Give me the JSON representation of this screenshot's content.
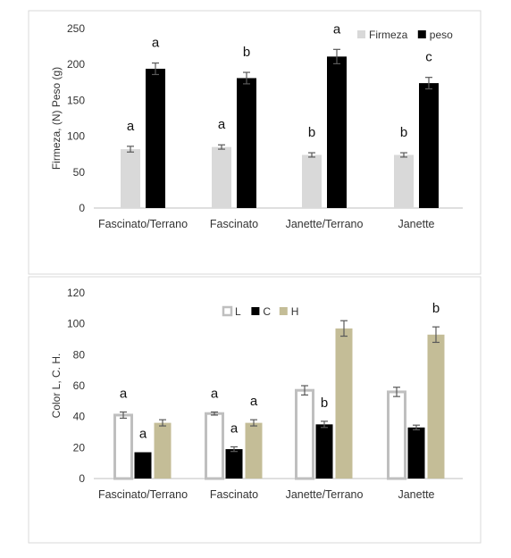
{
  "chart_data": [
    {
      "type": "bar",
      "ylabel": "Firmeza, (N) Peso (g)",
      "ylim": [
        0,
        250
      ],
      "yticks": [
        0,
        50,
        100,
        150,
        200,
        250
      ],
      "categories": [
        "Fascinato/Terrano",
        "Fascinato",
        "Janette/Terrano",
        "Janette"
      ],
      "legend_position": "top-right",
      "grid": false,
      "series": [
        {
          "name": "Firmeza",
          "color": "#d9d9d9",
          "values": [
            82,
            85,
            74,
            74
          ],
          "errors": [
            4,
            3,
            3,
            3
          ],
          "labels": [
            "a",
            "a",
            "b",
            "b"
          ]
        },
        {
          "name": "peso",
          "color": "#000000",
          "values": [
            194,
            181,
            211,
            174
          ],
          "errors": [
            8,
            8,
            10,
            8
          ],
          "labels": [
            "a",
            "b",
            "a",
            "c"
          ]
        }
      ]
    },
    {
      "type": "bar",
      "ylabel": "Color L, C. H.",
      "ylim": [
        0,
        120
      ],
      "yticks": [
        0,
        20,
        40,
        60,
        80,
        100,
        120
      ],
      "categories": [
        "Fascinato/Terrano",
        "Fascinato",
        "Janette/Terrano",
        "Janette"
      ],
      "legend_position": "top-center",
      "grid": false,
      "series": [
        {
          "name": "L",
          "color": "#ffffff",
          "values": [
            41,
            42,
            57,
            56
          ],
          "errors": [
            2,
            1,
            3,
            3
          ],
          "labels": [
            "a",
            "a",
            "",
            ""
          ]
        },
        {
          "name": "C",
          "color": "#000000",
          "values": [
            17,
            19,
            35,
            33
          ],
          "errors": [
            0,
            1.5,
            2,
            1.5
          ],
          "labels": [
            "a",
            "a",
            "b",
            ""
          ]
        },
        {
          "name": "H",
          "color": "#c4bd97",
          "values": [
            36,
            36,
            97,
            93
          ],
          "errors": [
            2,
            2,
            5,
            5
          ],
          "labels": [
            "",
            "a",
            "",
            "b"
          ]
        }
      ]
    }
  ]
}
